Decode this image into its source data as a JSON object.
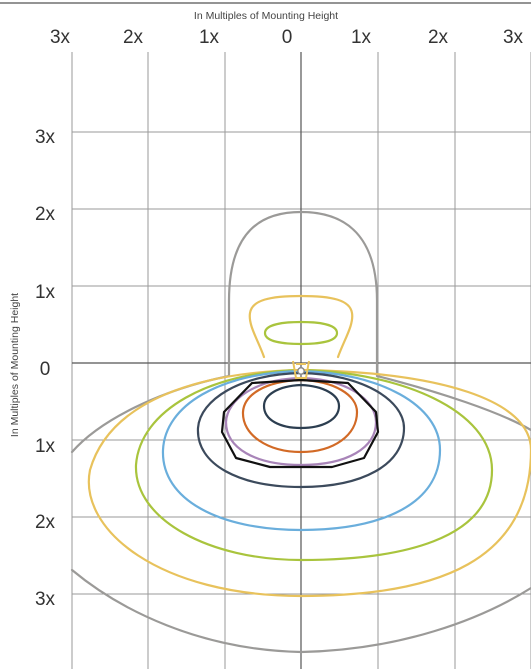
{
  "axes": {
    "top_title": "In Multiples of Mounting Height",
    "left_title": "In Multiples of Mounting Height",
    "x_ticks": [
      "3x",
      "2x",
      "1x",
      "0",
      "1x",
      "2x",
      "3x"
    ],
    "y_ticks": [
      "3x",
      "2x",
      "1x",
      "0",
      "1x",
      "2x",
      "3x"
    ]
  },
  "contours": [
    {
      "name": "contour-gray",
      "color": "#9b9a98"
    },
    {
      "name": "contour-yellow",
      "color": "#e8c25c"
    },
    {
      "name": "contour-green",
      "color": "#a9c43d"
    },
    {
      "name": "contour-blue",
      "color": "#6aaedc"
    },
    {
      "name": "contour-slate",
      "color": "#3c4a5c"
    },
    {
      "name": "contour-purple",
      "color": "#a884b8"
    },
    {
      "name": "contour-orange",
      "color": "#d26a26"
    },
    {
      "name": "contour-dark-teal",
      "color": "#2c3e50"
    },
    {
      "name": "contour-black",
      "color": "#111111"
    }
  ],
  "fixture_color": "#e8c25c"
}
